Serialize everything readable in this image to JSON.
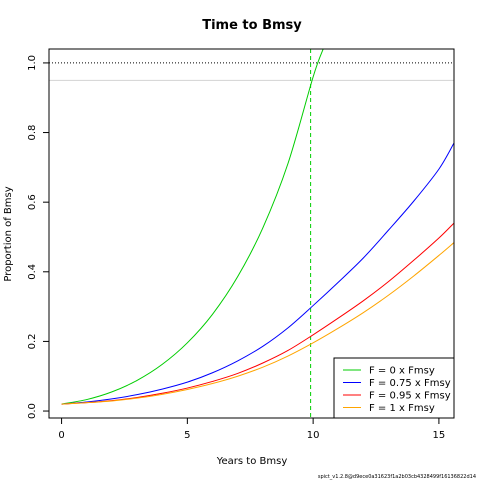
{
  "chart_data": {
    "type": "line",
    "title": "Time to Bmsy",
    "xlabel": "Years to Bmsy",
    "ylabel": "Proportion of Bmsy",
    "xlim": [
      -0.5,
      15.6
    ],
    "ylim": [
      -0.02,
      1.04
    ],
    "xticks": [
      "0",
      "5",
      "10",
      "15"
    ],
    "yticks": [
      "0.0",
      "0.2",
      "0.4",
      "0.6",
      "0.8",
      "1.0"
    ],
    "reference_lines": {
      "horizontal_dotted": 1.0,
      "horizontal_light": 0.95,
      "vertical_dashed_x": 9.9,
      "vertical_dashed_color": "#00CD00"
    },
    "legend_position": "bottom-right",
    "series": [
      {
        "name": "F = 0 x Fmsy",
        "color": "#00CD00",
        "x": [
          0,
          1,
          2,
          3,
          4,
          5,
          6,
          7,
          8,
          9,
          10,
          10.4
        ],
        "y": [
          0.02,
          0.033,
          0.055,
          0.088,
          0.134,
          0.196,
          0.278,
          0.386,
          0.526,
          0.711,
          0.96,
          1.04
        ]
      },
      {
        "name": "F = 0.75 x Fmsy",
        "color": "#0000FF",
        "x": [
          0,
          1,
          2,
          3,
          4,
          5,
          6,
          7,
          8,
          9,
          10,
          11,
          12,
          13,
          14,
          15,
          15.6
        ],
        "y": [
          0.02,
          0.026,
          0.035,
          0.047,
          0.063,
          0.083,
          0.11,
          0.144,
          0.186,
          0.239,
          0.303,
          0.37,
          0.44,
          0.52,
          0.603,
          0.695,
          0.77
        ]
      },
      {
        "name": "F = 0.95 x Fmsy",
        "color": "#FF0000",
        "x": [
          0,
          1,
          2,
          3,
          4,
          5,
          6,
          7,
          8,
          9,
          10,
          11,
          12,
          13,
          14,
          15,
          15.6
        ],
        "y": [
          0.02,
          0.024,
          0.03,
          0.039,
          0.051,
          0.066,
          0.085,
          0.108,
          0.138,
          0.174,
          0.219,
          0.267,
          0.317,
          0.372,
          0.433,
          0.497,
          0.54
        ]
      },
      {
        "name": "F = 1 x Fmsy",
        "color": "#FFA500",
        "x": [
          0,
          1,
          2,
          3,
          4,
          5,
          6,
          7,
          8,
          9,
          10,
          11,
          12,
          13,
          14,
          15,
          15.6
        ],
        "y": [
          0.02,
          0.024,
          0.029,
          0.037,
          0.048,
          0.062,
          0.079,
          0.1,
          0.126,
          0.158,
          0.196,
          0.238,
          0.283,
          0.333,
          0.388,
          0.447,
          0.484
        ]
      }
    ]
  },
  "footnote": "spict_v1.2.8@d9ece0a31623f1a2b03cb4328499f16136822d14"
}
